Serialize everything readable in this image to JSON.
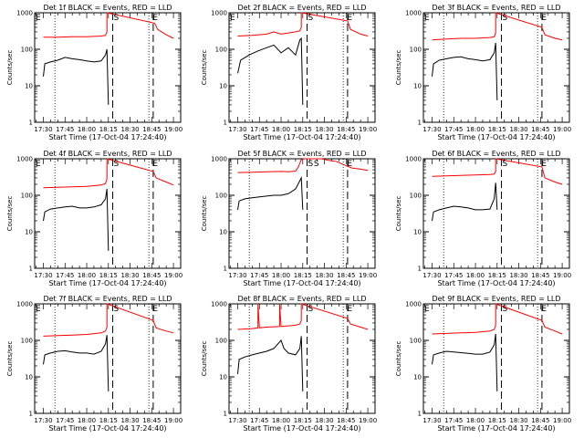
{
  "chart_data": [
    {
      "type": "line",
      "title": "Det 1f BLACK = Events, RED = LLD",
      "xlabel": "Start Time (17-Oct-04 17:24:40)",
      "ylabel": "Counts/sec",
      "yscale": "log",
      "ylim": [
        1,
        1000
      ],
      "xlim": [
        "17:24",
        "19:05"
      ],
      "xticks": [
        "17:30",
        "17:45",
        "18:00",
        "18:15",
        "18:30",
        "18:45",
        "19:00"
      ],
      "yticks": [
        "1",
        "10",
        "100",
        "1000"
      ],
      "markers": [
        {
          "label": "E",
          "time": "17:24"
        },
        {
          "label": "S",
          "time": "18:18"
        },
        {
          "label": "E",
          "time": "18:45"
        }
      ],
      "dotted_lines": [
        "17:38",
        "18:43"
      ],
      "dashed_lines": [
        "18:18",
        "18:46"
      ],
      "series": [
        {
          "color": "#ff0000",
          "x": [
            "17:30",
            "17:40",
            "17:50",
            "18:00",
            "18:10",
            "18:13",
            "18:14",
            "18:14",
            "18:47",
            "18:49",
            "18:55",
            "19:00"
          ],
          "y": [
            215,
            215,
            220,
            220,
            230,
            240,
            300,
            1000,
            520,
            350,
            250,
            200
          ]
        },
        {
          "color": "#000000",
          "x": [
            "17:30",
            "17:31",
            "17:35",
            "17:40",
            "17:45",
            "17:50",
            "17:55",
            "18:00",
            "18:05",
            "18:10",
            "18:13",
            "18:14",
            "18:15"
          ],
          "y": [
            18,
            40,
            45,
            50,
            60,
            55,
            52,
            48,
            45,
            48,
            70,
            100,
            3
          ]
        }
      ]
    },
    {
      "type": "line",
      "title": "Det 2f BLACK = Events, RED = LLD",
      "xlabel": "Start Time (17-Oct-04 17:24:40)",
      "ylabel": "Counts/sec",
      "yscale": "log",
      "ylim": [
        1,
        1000
      ],
      "xlim": [
        "17:24",
        "19:05"
      ],
      "xticks": [
        "17:30",
        "17:45",
        "18:00",
        "18:15",
        "18:30",
        "18:45",
        "19:00"
      ],
      "yticks": [
        "1",
        "10",
        "100",
        "1000"
      ],
      "markers": [
        {
          "label": "E",
          "time": "17:24"
        },
        {
          "label": "S",
          "time": "18:18"
        },
        {
          "label": "E",
          "time": "18:45"
        }
      ],
      "dotted_lines": [
        "17:38",
        "18:43"
      ],
      "dashed_lines": [
        "18:18",
        "18:46"
      ],
      "series": [
        {
          "color": "#ff0000",
          "x": [
            "17:30",
            "17:40",
            "17:50",
            "17:55",
            "18:00",
            "18:05",
            "18:10",
            "18:13",
            "18:14",
            "18:14",
            "18:46",
            "18:48",
            "18:55",
            "19:00"
          ],
          "y": [
            230,
            240,
            260,
            300,
            260,
            280,
            300,
            320,
            400,
            1000,
            600,
            350,
            260,
            230
          ]
        },
        {
          "color": "#000000",
          "x": [
            "17:30",
            "17:32",
            "17:38",
            "17:44",
            "17:50",
            "17:55",
            "18:00",
            "18:05",
            "18:10",
            "18:13",
            "18:14",
            "18:15"
          ],
          "y": [
            22,
            50,
            70,
            90,
            110,
            130,
            80,
            110,
            70,
            180,
            200,
            3
          ]
        }
      ]
    },
    {
      "type": "line",
      "title": "Det 3f BLACK = Events, RED = LLD",
      "xlabel": "Start Time (17-Oct-04 17:24:40)",
      "ylabel": "Counts/sec",
      "yscale": "log",
      "ylim": [
        1,
        1000
      ],
      "xlim": [
        "17:24",
        "19:05"
      ],
      "xticks": [
        "17:30",
        "17:45",
        "18:00",
        "18:15",
        "18:30",
        "18:45",
        "19:00"
      ],
      "yticks": [
        "1",
        "10",
        "100",
        "1000"
      ],
      "markers": [
        {
          "label": "E",
          "time": "17:24"
        },
        {
          "label": "S",
          "time": "18:18"
        },
        {
          "label": "E",
          "time": "18:45"
        }
      ],
      "dotted_lines": [
        "17:38",
        "18:43"
      ],
      "dashed_lines": [
        "18:18",
        "18:46"
      ],
      "series": [
        {
          "color": "#ff0000",
          "x": [
            "17:30",
            "17:40",
            "17:50",
            "18:00",
            "18:10",
            "18:13",
            "18:14",
            "18:14",
            "18:46",
            "18:48",
            "18:55",
            "19:00"
          ],
          "y": [
            180,
            190,
            200,
            200,
            210,
            220,
            280,
            1000,
            400,
            250,
            200,
            180
          ]
        },
        {
          "color": "#000000",
          "x": [
            "17:30",
            "17:31",
            "17:35",
            "17:40",
            "17:45",
            "17:50",
            "17:55",
            "18:00",
            "18:05",
            "18:10",
            "18:13",
            "18:14",
            "18:15"
          ],
          "y": [
            18,
            40,
            50,
            55,
            60,
            62,
            55,
            52,
            48,
            52,
            80,
            150,
            4
          ]
        }
      ]
    },
    {
      "type": "line",
      "title": "Det 4f BLACK = Events, RED = LLD",
      "xlabel": "Start Time (17-Oct-04 17:24:40)",
      "ylabel": "Counts/sec",
      "yscale": "log",
      "ylim": [
        1,
        1000
      ],
      "xlim": [
        "17:24",
        "19:05"
      ],
      "xticks": [
        "17:30",
        "17:45",
        "18:00",
        "18:15",
        "18:30",
        "18:45",
        "19:00"
      ],
      "yticks": [
        "1",
        "10",
        "100",
        "1000"
      ],
      "markers": [
        {
          "label": "E",
          "time": "17:24"
        },
        {
          "label": "S",
          "time": "18:18"
        },
        {
          "label": "E",
          "time": "18:45"
        }
      ],
      "dotted_lines": [
        "17:38",
        "18:43"
      ],
      "dashed_lines": [
        "18:18",
        "18:46"
      ],
      "series": [
        {
          "color": "#ff0000",
          "x": [
            "17:30",
            "17:40",
            "17:50",
            "18:00",
            "18:10",
            "18:13",
            "18:14",
            "18:14",
            "18:46",
            "18:48",
            "18:55",
            "19:00"
          ],
          "y": [
            160,
            165,
            170,
            175,
            190,
            210,
            280,
            1000,
            450,
            300,
            230,
            190
          ]
        },
        {
          "color": "#000000",
          "x": [
            "17:30",
            "17:31",
            "17:35",
            "17:40",
            "17:45",
            "17:50",
            "17:55",
            "18:00",
            "18:05",
            "18:10",
            "18:13",
            "18:14",
            "18:15"
          ],
          "y": [
            20,
            35,
            42,
            45,
            48,
            50,
            45,
            45,
            48,
            55,
            80,
            150,
            3
          ]
        }
      ]
    },
    {
      "type": "line",
      "title": "Det 5f BLACK = Events, RED = LLD",
      "xlabel": "Start Time (17-Oct-04 17:24:40)",
      "ylabel": "Counts/sec",
      "yscale": "log",
      "ylim": [
        1,
        1000
      ],
      "xlim": [
        "17:24",
        "19:05"
      ],
      "xticks": [
        "17:30",
        "17:45",
        "18:00",
        "18:15",
        "18:30",
        "18:45",
        "19:00"
      ],
      "yticks": [
        "1",
        "10",
        "100",
        "1000"
      ],
      "markers": [
        {
          "label": "S",
          "time": "18:18"
        },
        {
          "label": "S",
          "time": "18:22"
        },
        {
          "label": "E",
          "time": "18:45"
        }
      ],
      "dotted_lines": [
        "17:38",
        "18:43"
      ],
      "dashed_lines": [
        "18:18",
        "18:46"
      ],
      "series": [
        {
          "color": "#ff0000",
          "x": [
            "17:30",
            "17:40",
            "17:50",
            "18:00",
            "18:05",
            "18:10",
            "18:12",
            "18:14",
            "18:16",
            "18:20",
            "18:28",
            "18:33",
            "18:38",
            "18:43",
            "18:46",
            "18:49",
            "18:55",
            "19:00"
          ],
          "y": [
            420,
            430,
            440,
            450,
            440,
            460,
            600,
            950,
            1000,
            1000,
            1000,
            900,
            850,
            700,
            620,
            560,
            520,
            480
          ]
        },
        {
          "color": "#000000",
          "x": [
            "17:30",
            "17:31",
            "17:35",
            "17:40",
            "17:45",
            "17:50",
            "17:55",
            "18:00",
            "18:05",
            "18:10",
            "18:13",
            "18:14",
            "18:15"
          ],
          "y": [
            40,
            70,
            80,
            85,
            90,
            95,
            100,
            100,
            110,
            150,
            250,
            300,
            40
          ]
        }
      ]
    },
    {
      "type": "line",
      "title": "Det 6f BLACK = Events, RED = LLD",
      "xlabel": "Start Time (17-Oct-04 17:24:40)",
      "ylabel": "Counts/sec",
      "yscale": "log",
      "ylim": [
        1,
        1000
      ],
      "xlim": [
        "17:24",
        "19:05"
      ],
      "xticks": [
        "17:30",
        "17:45",
        "18:00",
        "18:15",
        "18:30",
        "18:45",
        "19:00"
      ],
      "yticks": [
        "1",
        "10",
        "100",
        "1000"
      ],
      "markers": [
        {
          "label": "S",
          "time": "18:18"
        },
        {
          "label": "E",
          "time": "18:45"
        }
      ],
      "dotted_lines": [
        "17:38",
        "18:43"
      ],
      "dashed_lines": [
        "18:18",
        "18:46"
      ],
      "series": [
        {
          "color": "#ff0000",
          "x": [
            "17:30",
            "17:40",
            "17:50",
            "18:00",
            "18:10",
            "18:13",
            "18:14",
            "18:14",
            "18:46",
            "18:48",
            "18:55",
            "19:00"
          ],
          "y": [
            330,
            340,
            350,
            360,
            370,
            380,
            450,
            1000,
            600,
            300,
            230,
            200
          ]
        },
        {
          "color": "#000000",
          "x": [
            "17:30",
            "17:31",
            "17:35",
            "17:40",
            "17:45",
            "17:50",
            "17:55",
            "18:00",
            "18:05",
            "18:10",
            "18:13",
            "18:14",
            "18:15"
          ],
          "y": [
            20,
            35,
            40,
            45,
            50,
            48,
            45,
            40,
            40,
            42,
            80,
            220,
            40
          ]
        }
      ]
    },
    {
      "type": "line",
      "title": "Det 7f BLACK = Events, RED = LLD",
      "xlabel": "Start Time (17-Oct-04 17:24:40)",
      "ylabel": "Counts/sec",
      "yscale": "log",
      "ylim": [
        1,
        1000
      ],
      "xlim": [
        "17:24",
        "19:05"
      ],
      "xticks": [
        "17:30",
        "17:45",
        "18:00",
        "18:15",
        "18:30",
        "18:45",
        "19:00"
      ],
      "yticks": [
        "1",
        "10",
        "100",
        "1000"
      ],
      "markers": [
        {
          "label": "E",
          "time": "17:24"
        },
        {
          "label": "S",
          "time": "18:18"
        },
        {
          "label": "E",
          "time": "18:45"
        }
      ],
      "dotted_lines": [
        "17:38",
        "18:43"
      ],
      "dashed_lines": [
        "18:18",
        "18:46"
      ],
      "series": [
        {
          "color": "#ff0000",
          "x": [
            "17:30",
            "17:40",
            "17:50",
            "18:00",
            "18:10",
            "18:13",
            "18:14",
            "18:14",
            "18:46",
            "18:48",
            "18:55",
            "19:00"
          ],
          "y": [
            130,
            135,
            140,
            145,
            160,
            180,
            230,
            1000,
            350,
            220,
            180,
            160
          ]
        },
        {
          "color": "#000000",
          "x": [
            "17:30",
            "17:31",
            "17:35",
            "17:40",
            "17:45",
            "17:50",
            "17:55",
            "18:00",
            "18:05",
            "18:10",
            "18:13",
            "18:14",
            "18:15"
          ],
          "y": [
            22,
            40,
            45,
            50,
            52,
            48,
            45,
            45,
            42,
            50,
            80,
            140,
            4
          ]
        }
      ]
    },
    {
      "type": "line",
      "title": "Det 8f BLACK = Events, RED = LLD",
      "xlabel": "Start Time (17-Oct-04 17:24:40)",
      "ylabel": "Counts/sec",
      "yscale": "log",
      "ylim": [
        1,
        1000
      ],
      "xlim": [
        "17:24",
        "19:05"
      ],
      "xticks": [
        "17:30",
        "17:45",
        "18:00",
        "18:15",
        "18:30",
        "18:45",
        "19:00"
      ],
      "yticks": [
        "1",
        "10",
        "100",
        "1000"
      ],
      "markers": [
        {
          "label": "S",
          "time": "18:18"
        },
        {
          "label": "E",
          "time": "18:45"
        }
      ],
      "dotted_lines": [
        "17:38",
        "18:43"
      ],
      "dashed_lines": [
        "18:18",
        "18:46"
      ],
      "series": [
        {
          "color": "#ff0000",
          "x": [
            "17:30",
            "17:40",
            "17:44",
            "17:44",
            "17:45",
            "17:50",
            "17:59",
            "17:59",
            "18:00",
            "18:05",
            "18:10",
            "18:13",
            "18:14",
            "18:14",
            "18:46",
            "18:48",
            "18:55",
            "19:00"
          ],
          "y": [
            200,
            210,
            220,
            1000,
            220,
            230,
            240,
            1000,
            240,
            250,
            260,
            280,
            350,
            1000,
            400,
            280,
            230,
            200
          ]
        },
        {
          "color": "#000000",
          "x": [
            "17:30",
            "17:31",
            "17:35",
            "17:40",
            "17:45",
            "17:50",
            "17:55",
            "18:00",
            "18:02",
            "18:05",
            "18:10",
            "18:13",
            "18:14",
            "18:15"
          ],
          "y": [
            12,
            30,
            35,
            40,
            45,
            50,
            60,
            100,
            60,
            45,
            40,
            60,
            130,
            4
          ]
        }
      ]
    },
    {
      "type": "line",
      "title": "Det 9f BLACK = Events, RED = LLD",
      "xlabel": "Start Time (17-Oct-04 17:24:40)",
      "ylabel": "Counts/sec",
      "yscale": "log",
      "ylim": [
        1,
        1000
      ],
      "xlim": [
        "17:24",
        "19:05"
      ],
      "xticks": [
        "17:30",
        "17:45",
        "18:00",
        "18:15",
        "18:30",
        "18:45",
        "19:00"
      ],
      "yticks": [
        "1",
        "10",
        "100",
        "1000"
      ],
      "markers": [
        {
          "label": "E",
          "time": "17:24"
        },
        {
          "label": "S",
          "time": "18:18"
        },
        {
          "label": "E",
          "time": "18:45"
        }
      ],
      "dotted_lines": [
        "17:38",
        "18:43"
      ],
      "dashed_lines": [
        "18:18",
        "18:46"
      ],
      "series": [
        {
          "color": "#ff0000",
          "x": [
            "17:30",
            "17:40",
            "17:50",
            "18:00",
            "18:10",
            "18:13",
            "18:14",
            "18:14",
            "18:46",
            "18:48",
            "18:55",
            "19:00"
          ],
          "y": [
            150,
            155,
            160,
            165,
            180,
            200,
            260,
            1000,
            350,
            230,
            180,
            150
          ]
        },
        {
          "color": "#000000",
          "x": [
            "17:30",
            "17:31",
            "17:35",
            "17:40",
            "17:45",
            "17:50",
            "17:55",
            "18:00",
            "18:05",
            "18:10",
            "18:13",
            "18:14",
            "18:15"
          ],
          "y": [
            22,
            40,
            45,
            50,
            48,
            46,
            44,
            42,
            42,
            48,
            75,
            150,
            4
          ]
        }
      ]
    }
  ]
}
